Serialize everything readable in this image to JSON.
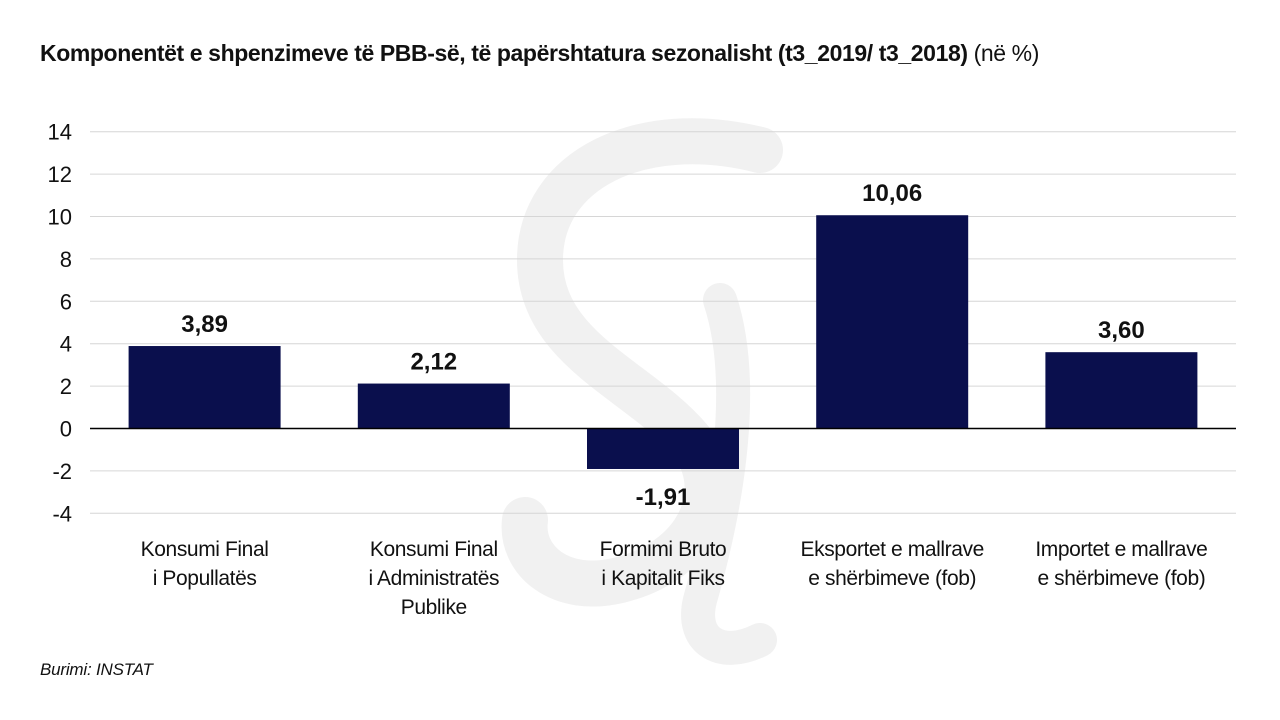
{
  "title": "Komponentët e shpenzimeve të PBB-së, të papërshtatura sezonalisht (t3_2019/ t3_2018)",
  "title_unit": "(në %)",
  "source": "Burimi: INSTAT",
  "colors": {
    "bar": "#0a0f4d",
    "grid": "#d6d6d6",
    "zero_line": "#000000",
    "text": "#111111",
    "watermark": "#f1f1f1"
  },
  "chart_data": {
    "type": "bar",
    "categories": [
      [
        "Konsumi Final",
        "i Popullatës"
      ],
      [
        "Konsumi Final",
        "i Administratës",
        "Publike"
      ],
      [
        "Formimi Bruto",
        "i Kapitalit Fiks"
      ],
      [
        "Eksportet e mallrave",
        "e shërbimeve (fob)"
      ],
      [
        "Importet e mallrave",
        "e shërbimeve (fob)"
      ]
    ],
    "values": [
      3.89,
      2.12,
      -1.91,
      10.06,
      3.6
    ],
    "data_labels": [
      "3,89",
      "2,12",
      "-1,91",
      "10,06",
      "3,60"
    ],
    "yticks": [
      14,
      12,
      10,
      8,
      6,
      4,
      2,
      0,
      -2,
      -4
    ],
    "ylim": [
      -4,
      14
    ],
    "grid": true,
    "legend": "none"
  }
}
